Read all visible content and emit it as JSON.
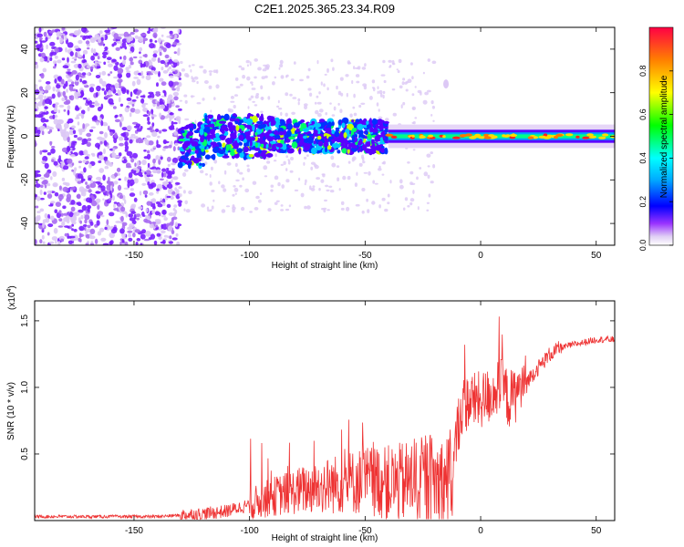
{
  "title": "C2E1.2025.365.23.34.R09",
  "chart_data": [
    {
      "type": "heatmap",
      "title": "C2E1.2025.365.23.34.R09",
      "xlabel": "Height of straight line (km)",
      "ylabel": "Frequency (Hz)",
      "xlim": [
        -193,
        58
      ],
      "ylim": [
        -50,
        50
      ],
      "xticks": [
        -150,
        -100,
        -50,
        0,
        50
      ],
      "yticks": [
        -40,
        -20,
        0,
        20,
        40
      ],
      "colorbar": {
        "label": "Normalized spectral amplitude",
        "range": [
          0.0,
          1.0
        ],
        "ticks": [
          0.0,
          0.2,
          0.4,
          0.6,
          0.8
        ],
        "tick_labels": [
          "0.0",
          "0.2",
          "0.4",
          "0.6",
          "0.8"
        ],
        "colormap": [
          "#ffffff",
          "#d9c2f2",
          "#8000ff",
          "#0000ff",
          "#00ffff",
          "#00ff00",
          "#ffff00",
          "#ff8000",
          "#ff0000"
        ]
      },
      "features": [
        {
          "region": "noise",
          "x_range": [
            -193,
            -130
          ],
          "freq_range": [
            -50,
            50
          ],
          "amplitude": 0.05
        },
        {
          "region": "band",
          "x_range": [
            -130,
            -40
          ],
          "freq_center": 0,
          "half_width_hz": 6,
          "amplitude": 0.25
        },
        {
          "region": "band",
          "x_range": [
            -40,
            58
          ],
          "freq_center": 0,
          "half_width_hz": 3,
          "amplitude": 0.8
        },
        {
          "region": "spot",
          "x": -15,
          "freq": 24,
          "amplitude": 0.05
        }
      ]
    },
    {
      "type": "line",
      "xlabel": "Height of straight line (km)",
      "ylabel": "SNR (10 * v/v)",
      "multiplier_label": "(x10",
      "multiplier_exp": "4",
      "xlim": [
        -193,
        58
      ],
      "ylim": [
        0,
        1.65
      ],
      "xticks": [
        -150,
        -100,
        -50,
        0,
        50
      ],
      "yticks": [
        0.5,
        1.0,
        1.5
      ],
      "ytick_labels": [
        "0.5",
        "1.0",
        "1.5"
      ],
      "line_color": "#ee3333",
      "series": [
        {
          "name": "SNR",
          "x": [
            -193,
            -180,
            -160,
            -140,
            -130,
            -120,
            -110,
            -100,
            -95,
            -90,
            -80,
            -70,
            -60,
            -50,
            -45,
            -40,
            -35,
            -30,
            -25,
            -20,
            -15,
            -12,
            -10,
            -8,
            -5,
            0,
            5,
            8,
            10,
            12,
            15,
            20,
            25,
            30,
            35,
            40,
            45,
            50,
            58
          ],
          "y": [
            0.03,
            0.03,
            0.03,
            0.03,
            0.04,
            0.05,
            0.07,
            0.12,
            0.15,
            0.18,
            0.22,
            0.25,
            0.28,
            0.3,
            0.3,
            0.28,
            0.28,
            0.3,
            0.3,
            0.3,
            0.28,
            0.35,
            0.7,
            0.85,
            0.9,
            0.9,
            0.95,
            1.0,
            1.0,
            0.9,
            0.95,
            1.05,
            1.15,
            1.25,
            1.3,
            1.32,
            1.34,
            1.36,
            1.36
          ]
        }
      ]
    }
  ]
}
